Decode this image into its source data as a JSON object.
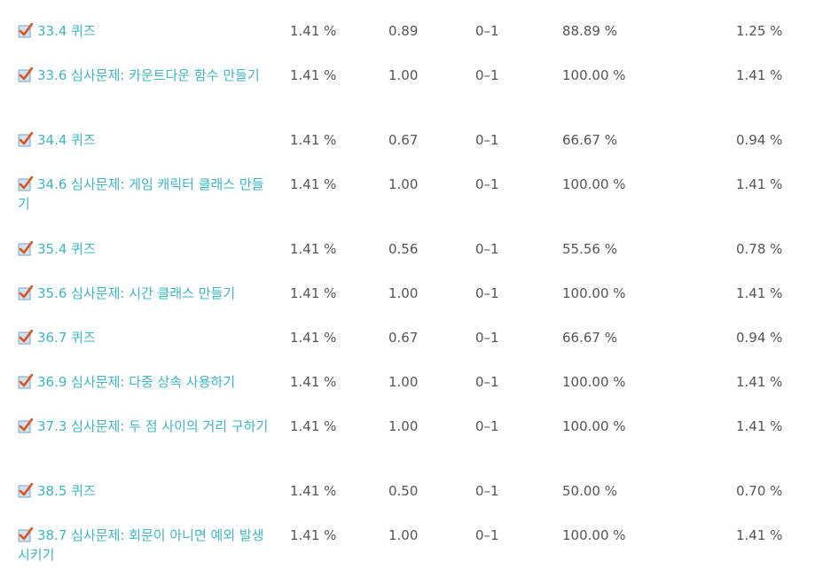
{
  "rows": [
    {
      "item": "33.4 퀴즈",
      "weight": "1.41 %",
      "grade": "0.89",
      "range": "0–1",
      "percentage": "88.89 %",
      "contribution": "1.25 %",
      "wrap": false
    },
    {
      "item": "33.6 심사문제: 카운트다운 함수 만들기",
      "weight": "1.41 %",
      "grade": "1.00",
      "range": "0–1",
      "percentage": "100.00 %",
      "contribution": "1.41 %",
      "wrap": true
    },
    {
      "item": "34.4 퀴즈",
      "weight": "1.41 %",
      "grade": "0.67",
      "range": "0–1",
      "percentage": "66.67 %",
      "contribution": "0.94 %",
      "wrap": false
    },
    {
      "item": "34.6 심사문제: 게임 캐릭터 클래스 만들기",
      "weight": "1.41 %",
      "grade": "1.00",
      "range": "0–1",
      "percentage": "100.00 %",
      "contribution": "1.41 %",
      "wrap": true
    },
    {
      "item": "35.4 퀴즈",
      "weight": "1.41 %",
      "grade": "0.56",
      "range": "0–1",
      "percentage": "55.56 %",
      "contribution": "0.78 %",
      "wrap": false
    },
    {
      "item": "35.6 심사문제: 시간 클래스 만들기",
      "weight": "1.41 %",
      "grade": "1.00",
      "range": "0–1",
      "percentage": "100.00 %",
      "contribution": "1.41 %",
      "wrap": false
    },
    {
      "item": "36.7 퀴즈",
      "weight": "1.41 %",
      "grade": "0.67",
      "range": "0–1",
      "percentage": "66.67 %",
      "contribution": "0.94 %",
      "wrap": false
    },
    {
      "item": "36.9 심사문제: 다중 상속 사용하기",
      "weight": "1.41 %",
      "grade": "1.00",
      "range": "0–1",
      "percentage": "100.00 %",
      "contribution": "1.41 %",
      "wrap": false
    },
    {
      "item": "37.3 심사문제: 두 점 사이의 거리 구하기",
      "weight": "1.41 %",
      "grade": "1.00",
      "range": "0–1",
      "percentage": "100.00 %",
      "contribution": "1.41 %",
      "wrap": true
    },
    {
      "item": "38.5 퀴즈",
      "weight": "1.41 %",
      "grade": "0.50",
      "range": "0–1",
      "percentage": "50.00 %",
      "contribution": "0.70 %",
      "wrap": false
    },
    {
      "item": "38.7 심사문제: 회문이 아니면 예외 발생시키기",
      "weight": "1.41 %",
      "grade": "1.00",
      "range": "0–1",
      "percentage": "100.00 %",
      "contribution": "1.41 %",
      "wrap": true
    }
  ],
  "icons": {
    "quiz_icon": "checked-box-icon",
    "accent": "#3fb5c5",
    "check_color": "#d9541e"
  }
}
